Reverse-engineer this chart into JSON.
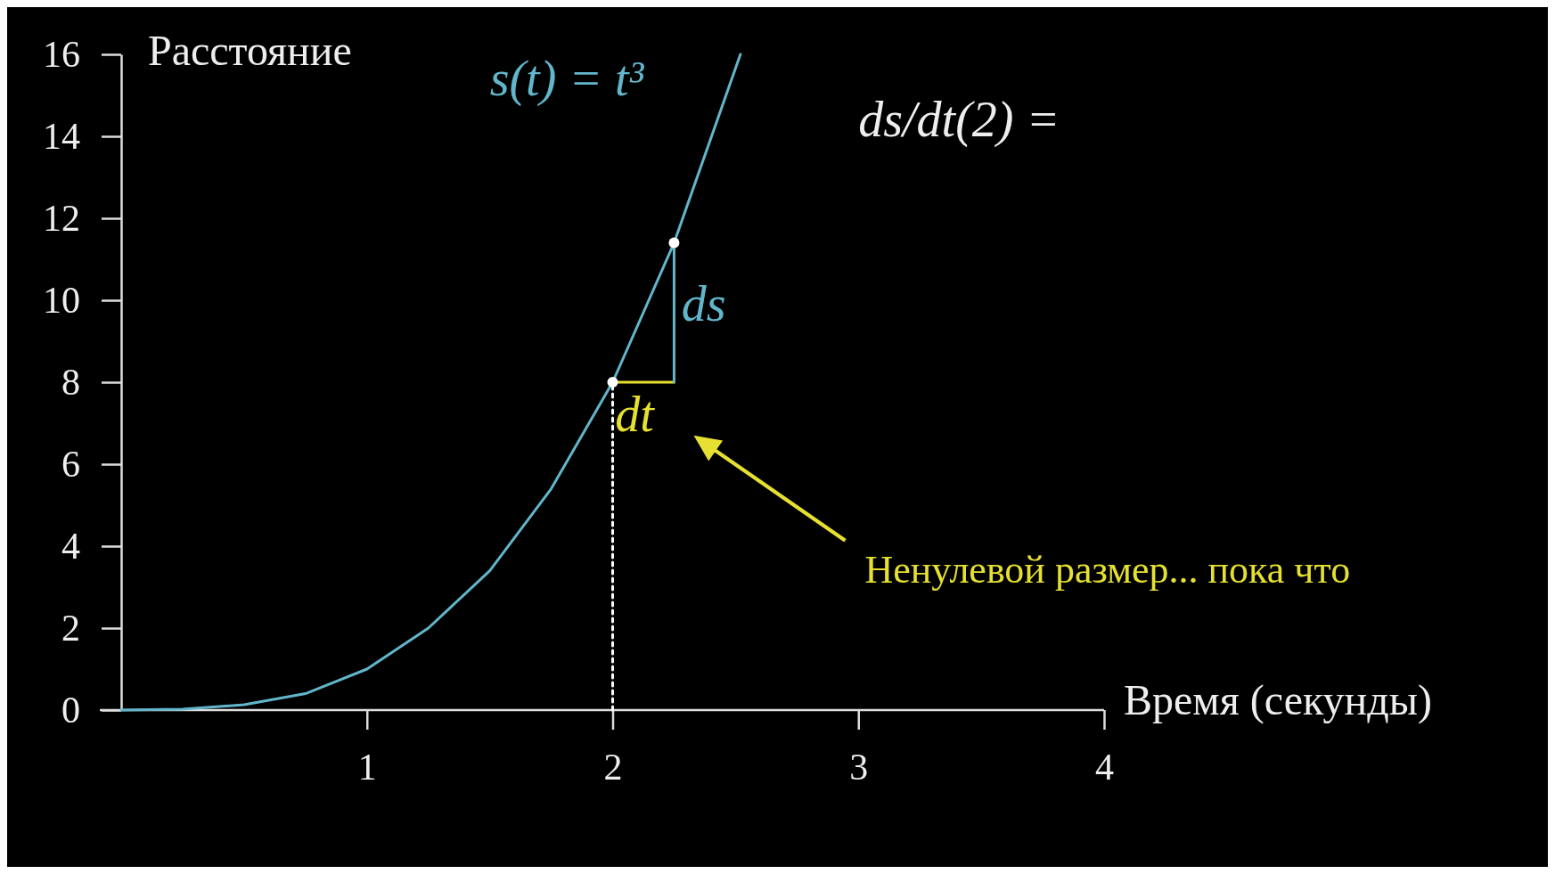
{
  "chart_data": {
    "type": "line",
    "xlabel": "Время (секунды)",
    "ylabel": "Расстояние",
    "xlim": [
      0,
      4
    ],
    "ylim": [
      0,
      16
    ],
    "xticks": [
      1,
      2,
      3,
      4
    ],
    "yticks": [
      0,
      2,
      4,
      6,
      8,
      10,
      12,
      14,
      16
    ],
    "grid": false,
    "series": [
      {
        "color": "#62b6cb",
        "x": [
          0,
          0.25,
          0.5,
          0.75,
          1,
          1.25,
          1.5,
          1.75,
          2,
          2.25,
          2.52
        ],
        "values": [
          0,
          0.02,
          0.13,
          0.4,
          1,
          2,
          3.4,
          5.4,
          8,
          11.4,
          16
        ]
      },
      {
        "type": "line",
        "line_style": "dotted",
        "color": "#ffffff",
        "x": [
          2,
          2
        ],
        "values": [
          0,
          8
        ]
      },
      {
        "type": "line",
        "color": "#e6e030",
        "x": [
          2,
          2.25
        ],
        "values": [
          8,
          8
        ]
      },
      {
        "type": "line",
        "color": "#62b6cb",
        "x": [
          2.25,
          2.25
        ],
        "values": [
          8,
          11.4
        ]
      },
      {
        "type": "scatter",
        "marker": "circle",
        "color": "#ffffff",
        "x": [
          2,
          2.25
        ],
        "values": [
          8,
          11.4
        ]
      }
    ],
    "annotations": [
      "s(t) = t³",
      "ds",
      "dt",
      "Ненулевой размер... пока что",
      "ds/dt(2) ="
    ]
  }
}
